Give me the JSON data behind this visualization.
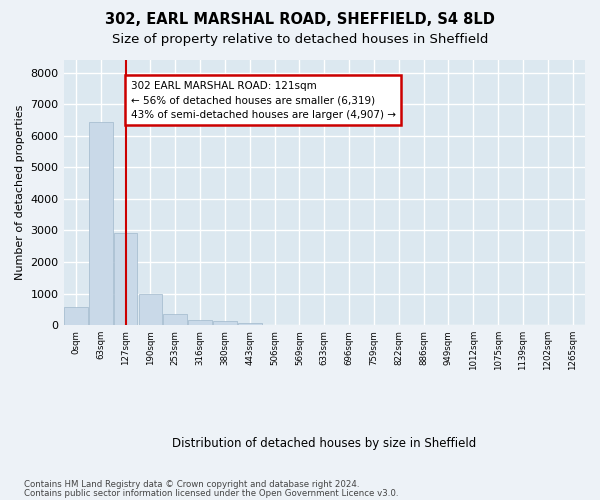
{
  "title_line1": "302, EARL MARSHAL ROAD, SHEFFIELD, S4 8LD",
  "title_line2": "Size of property relative to detached houses in Sheffield",
  "xlabel": "Distribution of detached houses by size in Sheffield",
  "ylabel": "Number of detached properties",
  "bar_values": [
    570,
    6430,
    2920,
    990,
    360,
    175,
    115,
    75,
    0,
    0,
    0,
    0,
    0,
    0,
    0,
    0,
    0,
    0,
    0,
    0,
    0
  ],
  "bar_labels": [
    "0sqm",
    "63sqm",
    "127sqm",
    "190sqm",
    "253sqm",
    "316sqm",
    "380sqm",
    "443sqm",
    "506sqm",
    "569sqm",
    "633sqm",
    "696sqm",
    "759sqm",
    "822sqm",
    "886sqm",
    "949sqm",
    "1012sqm",
    "1075sqm",
    "1139sqm",
    "1202sqm",
    "1265sqm"
  ],
  "bar_color": "#c9d9e8",
  "bar_edge_color": "#a0b8cc",
  "property_line_x": 2,
  "property_line_color": "#cc0000",
  "annotation_text": "302 EARL MARSHAL ROAD: 121sqm\n← 56% of detached houses are smaller (6,319)\n43% of semi-detached houses are larger (4,907) →",
  "annotation_box_edgecolor": "#cc0000",
  "ylim": [
    0,
    8400
  ],
  "yticks": [
    0,
    1000,
    2000,
    3000,
    4000,
    5000,
    6000,
    7000,
    8000
  ],
  "bg_color": "#edf2f7",
  "plot_bg_color": "#dce8f0",
  "grid_color": "#ffffff",
  "footer_line1": "Contains HM Land Registry data © Crown copyright and database right 2024.",
  "footer_line2": "Contains public sector information licensed under the Open Government Licence v3.0.",
  "title_fontsize": 10.5,
  "subtitle_fontsize": 9.5
}
